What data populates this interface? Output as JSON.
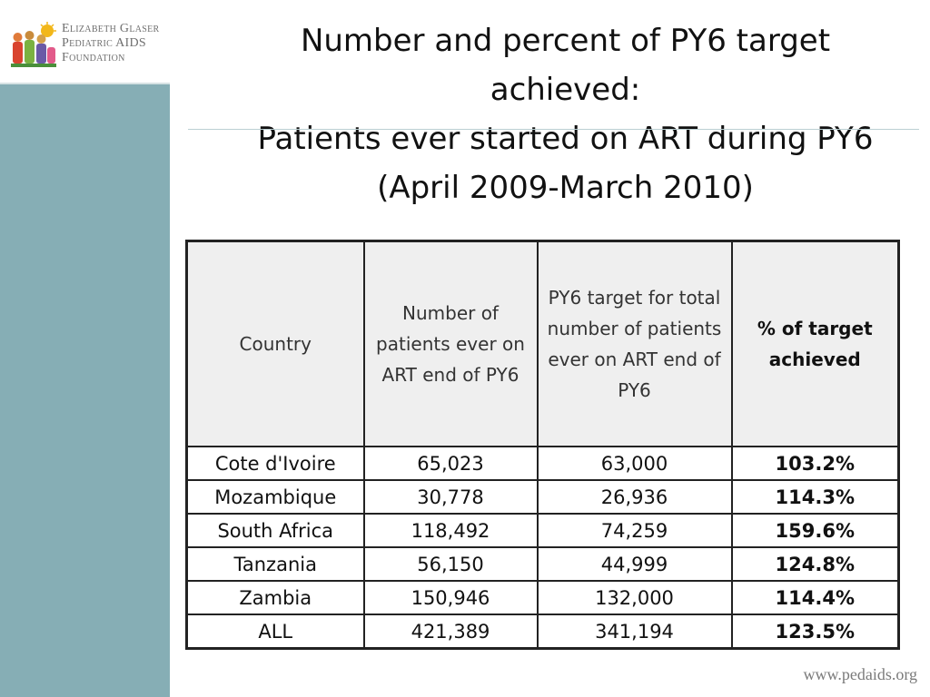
{
  "logo": {
    "line1": "Elizabeth Glaser",
    "line2": "Pediatric AIDS",
    "line3": "Foundation",
    "icon": "children-logo-icon"
  },
  "title": {
    "line1": "Number and percent of PY6 target",
    "line2": "achieved:",
    "line3": "Patients ever started on ART during PY6",
    "line4": "(April 2009-March 2010)"
  },
  "table": {
    "headers": [
      "Country",
      "Number of patients ever on ART end of PY6",
      "PY6 target for total number of patients ever on ART end of PY6",
      "% of target achieved"
    ],
    "rows": [
      [
        "Cote d'Ivoire",
        "65,023",
        "63,000",
        "103.2%"
      ],
      [
        "Mozambique",
        "30,778",
        "26,936",
        "114.3%"
      ],
      [
        "South Africa",
        "118,492",
        "74,259",
        "159.6%"
      ],
      [
        "Tanzania",
        "56,150",
        "44,999",
        "124.8%"
      ],
      [
        "Zambia",
        "150,946",
        "132,000",
        "114.4%"
      ],
      [
        "ALL",
        "421,389",
        "341,194",
        "123.5%"
      ]
    ]
  },
  "footer": {
    "url": "www.pedaids.org"
  },
  "colors": {
    "sidebar": "#86aeb5",
    "header_bg": "#efefef"
  }
}
